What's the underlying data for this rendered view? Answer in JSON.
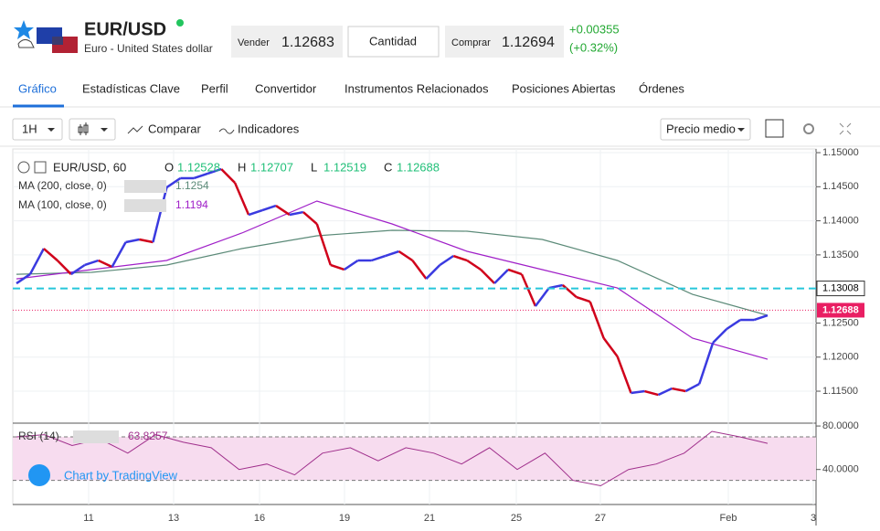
{
  "header": {
    "symbol": "EUR/USD",
    "name": "Euro - United States dollar",
    "sell_label": "Vender",
    "sell_price": "1.12683",
    "quantity": "Cantidad",
    "buy_label": "Comprar",
    "buy_price": "1.12694",
    "change": "+0.00355",
    "change_pct": "(+0.32%)"
  },
  "tabs": [
    "Gráfico",
    "Estadísticas Clave",
    "Perfil",
    "Convertidor",
    "Instrumentos Relacionados",
    "Posiciones Abiertas",
    "Órdenes"
  ],
  "toolbar": {
    "interval": "1H",
    "compare": "Comparar",
    "indicators": "Indicadores",
    "price_mode": "Precio medio"
  },
  "chart_data": {
    "type": "line",
    "title": "EUR/USD, 60",
    "ohlc": [
      {
        "key": "O",
        "value": "1.12528"
      },
      {
        "key": "H",
        "value": "1.12707"
      },
      {
        "key": "L",
        "value": "1.12519"
      },
      {
        "key": "C",
        "value": "1.12688"
      }
    ],
    "ylim": [
      1.11031,
      1.15054
    ],
    "yticks": [
      {
        "value": 1.15,
        "label": "1.15000"
      },
      {
        "value": 1.145,
        "label": "1.14500"
      },
      {
        "value": 1.14,
        "label": "1.14000"
      },
      {
        "value": 1.135,
        "label": "1.13500"
      },
      {
        "value": 1.125,
        "label": "1.12500"
      },
      {
        "value": 1.12,
        "label": "1.12000"
      },
      {
        "value": 1.115,
        "label": "1.11500"
      }
    ],
    "date_labels": [
      "11",
      "13",
      "16",
      "19",
      "21",
      "25",
      "27",
      "Feb",
      "3"
    ],
    "series": [
      {
        "name": "EUR/USD",
        "color": "#d0021b",
        "up_color": "#3a3ae0",
        "values": [
          1.13082,
          1.13216,
          1.13592,
          1.13418,
          1.13216,
          1.13351,
          1.13418,
          1.13324,
          1.13686,
          1.13726,
          1.13686,
          1.1449,
          1.14625,
          1.14625,
          1.14692,
          1.14759,
          1.14557,
          1.14088,
          1.14155,
          1.14222,
          1.14088,
          1.14128,
          1.13954,
          1.13351,
          1.13284,
          1.13418,
          1.13418,
          1.13485,
          1.13552,
          1.13418,
          1.13149,
          1.13351,
          1.13485,
          1.13418,
          1.13284,
          1.13082,
          1.13284,
          1.13216,
          1.12747,
          1.13015,
          1.13056,
          1.12881,
          1.12814,
          1.12278,
          1.1201,
          1.11473,
          1.115,
          1.11446,
          1.1154,
          1.115,
          1.11607,
          1.12211,
          1.12412,
          1.12546,
          1.12546,
          1.12613
        ]
      },
      {
        "name": "MA (200, close, 0)",
        "last": "1.1254",
        "color": "#5b8a78",
        "values": [
          1.13216,
          1.13243,
          1.13351,
          1.13592,
          1.1378,
          1.1386,
          1.13847,
          1.13726,
          1.13418,
          1.12921,
          1.12613
        ]
      },
      {
        "name": "MA (100, close, 0)",
        "last": "1.1194",
        "color": "#a020c8",
        "values": [
          1.13149,
          1.13284,
          1.13418,
          1.1382,
          1.14289,
          1.13954,
          1.13552,
          1.13284,
          1.13015,
          1.12278,
          1.11969
        ]
      }
    ],
    "price_lines": [
      {
        "value": 1.13008,
        "label": "1.13008",
        "color": "#26c6da"
      },
      {
        "value": 1.12688,
        "label": "1.12688",
        "color": "#e91e63"
      }
    ],
    "rsi": {
      "name": "RSI (14)",
      "last": "63.8257",
      "color": "#a0308c",
      "ylim": [
        7.8,
        82.6
      ],
      "yticks": [
        {
          "value": 80,
          "label": "80.0000"
        },
        {
          "value": 40,
          "label": "40.0000"
        }
      ],
      "bands": [
        30,
        70
      ],
      "values": [
        70,
        72,
        62,
        68,
        55,
        72,
        65,
        60,
        40,
        45,
        35,
        55,
        60,
        48,
        60,
        55,
        45,
        60,
        40,
        55,
        30,
        25,
        40,
        45,
        55,
        75,
        70,
        64
      ]
    },
    "watermark": "Chart by TradingView"
  }
}
